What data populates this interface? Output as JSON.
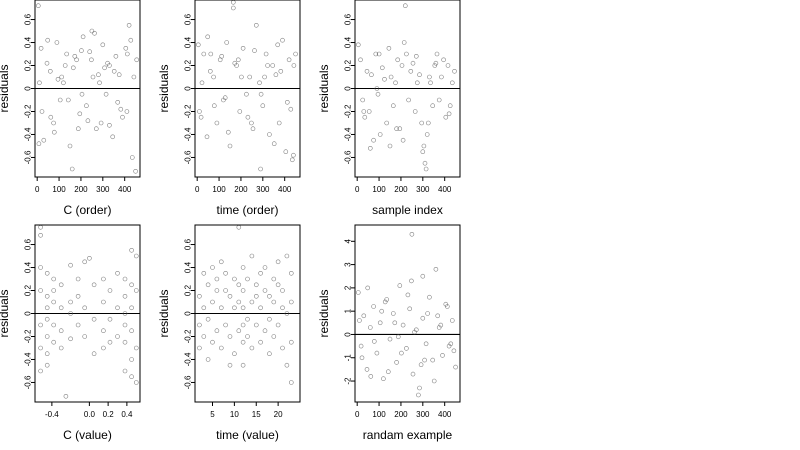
{
  "chart_data": [
    {
      "type": "scatter",
      "title": "",
      "xlabel": "C (order)",
      "ylabel": "residuals",
      "xlim": [
        -10,
        470
      ],
      "ylim": [
        -0.77,
        0.77
      ],
      "xticks": [
        0,
        100,
        200,
        300,
        400
      ],
      "yticks": [
        -0.6,
        -0.4,
        -0.2,
        0.0,
        0.2,
        0.4,
        0.6
      ],
      "reference_line_y": 0,
      "grid": false,
      "series": [
        {
          "x": [
            5,
            18,
            30,
            45,
            60,
            75,
            90,
            105,
            120,
            135,
            150,
            165,
            180,
            195,
            210,
            225,
            240,
            255,
            270,
            285,
            300,
            315,
            330,
            345,
            360,
            375,
            390,
            405,
            420,
            435,
            450,
            22,
            48,
            78,
            112,
            142,
            172,
            202,
            232,
            262,
            292,
            322,
            352,
            382,
            412,
            442,
            10,
            62,
            128,
            188,
            248,
            308,
            368,
            428,
            8,
            95,
            205,
            280,
            330,
            410,
            455,
            160,
            250
          ],
          "y": [
            0.72,
            0.35,
            -0.45,
            0.22,
            0.15,
            -0.3,
            0.4,
            -0.1,
            0.05,
            0.3,
            -0.5,
            0.18,
            0.25,
            -0.22,
            0.45,
            -0.15,
            0.32,
            0.1,
            -0.35,
            0.05,
            0.38,
            -0.05,
            0.2,
            -0.42,
            0.28,
            0.12,
            -0.25,
            0.35,
            0.55,
            -0.6,
            -0.72,
            -0.2,
            0.42,
            -0.38,
            0.1,
            -0.1,
            0.28,
            0.33,
            -0.28,
            0.48,
            -0.3,
            0.22,
            0.15,
            -0.18,
            0.3,
            0.1,
            0.05,
            -0.25,
            0.2,
            -0.35,
            0.25,
            0.18,
            -0.12,
            0.42,
            -0.48,
            0.08,
            -0.05,
            0.12,
            -0.32,
            -0.2,
            0.25,
            -0.7,
            0.5
          ]
        }
      ]
    },
    {
      "type": "scatter",
      "title": "",
      "xlabel": "time (order)",
      "ylabel": "residuals",
      "xlim": [
        -10,
        470
      ],
      "ylim": [
        -0.77,
        0.77
      ],
      "xticks": [
        0,
        100,
        200,
        300,
        400
      ],
      "yticks": [
        -0.6,
        -0.4,
        -0.2,
        0.0,
        0.2,
        0.4,
        0.6
      ],
      "reference_line_y": 0,
      "grid": false,
      "series": [
        {
          "x": [
            5,
            18,
            30,
            45,
            60,
            75,
            90,
            105,
            120,
            135,
            150,
            165,
            180,
            195,
            210,
            225,
            240,
            255,
            270,
            285,
            300,
            315,
            330,
            345,
            360,
            375,
            390,
            405,
            420,
            435,
            450,
            22,
            48,
            78,
            112,
            142,
            172,
            202,
            232,
            262,
            292,
            322,
            352,
            382,
            412,
            442,
            10,
            62,
            128,
            188,
            248,
            308,
            368,
            428,
            165,
            290,
            440
          ],
          "y": [
            0.38,
            -0.25,
            0.3,
            -0.42,
            0.15,
            0.1,
            -0.3,
            0.25,
            -0.1,
            0.4,
            -0.5,
            0.7,
            0.2,
            -0.2,
            0.35,
            -0.05,
            0.1,
            -0.35,
            0.55,
            0.05,
            -0.15,
            0.3,
            -0.4,
            0.2,
            0.12,
            -0.3,
            0.42,
            -0.55,
            0.25,
            -0.62,
            0.3,
            0.05,
            0.45,
            -0.15,
            0.28,
            -0.38,
            0.22,
            0.1,
            -0.25,
            0.33,
            -0.05,
            0.2,
            -0.48,
            0.15,
            -0.12,
            0.2,
            -0.2,
            0.3,
            -0.08,
            0.25,
            -0.3,
            0.1,
            0.38,
            -0.18,
            0.75,
            -0.7,
            -0.58
          ]
        }
      ]
    },
    {
      "type": "scatter",
      "title": "",
      "xlabel": "sample index",
      "ylabel": "residuals",
      "xlim": [
        -10,
        470
      ],
      "ylim": [
        -0.77,
        0.77
      ],
      "xticks": [
        0,
        100,
        200,
        300,
        400
      ],
      "yticks": [
        -0.6,
        -0.4,
        -0.2,
        0.0,
        0.2,
        0.4,
        0.6
      ],
      "reference_line_y": 0,
      "grid": false,
      "series": [
        {
          "x": [
            5,
            15,
            25,
            35,
            45,
            55,
            65,
            75,
            85,
            95,
            105,
            115,
            125,
            135,
            145,
            155,
            165,
            175,
            185,
            195,
            205,
            215,
            225,
            235,
            245,
            255,
            265,
            275,
            285,
            295,
            305,
            310,
            315,
            320,
            325,
            335,
            345,
            355,
            365,
            375,
            385,
            395,
            405,
            415,
            425,
            435,
            445,
            30,
            90,
            150,
            210,
            270,
            300,
            330,
            360,
            420,
            220,
            100,
            180,
            60
          ],
          "y": [
            0.38,
            0.25,
            -0.1,
            -0.25,
            0.15,
            -0.2,
            0.12,
            -0.45,
            0.3,
            -0.05,
            -0.4,
            0.18,
            0.08,
            -0.3,
            0.35,
            0.1,
            -0.15,
            0.05,
            0.25,
            -0.35,
            0.2,
            0.4,
            0.3,
            -0.1,
            0.15,
            0.22,
            -0.2,
            0.05,
            0.12,
            -0.3,
            -0.5,
            -0.65,
            -0.7,
            -0.4,
            -0.3,
            0.05,
            -0.15,
            0.2,
            0.3,
            -0.1,
            0.1,
            0.25,
            -0.25,
            0.2,
            -0.15,
            0.05,
            0.15,
            -0.2,
            0.0,
            -0.5,
            -0.45,
            0.28,
            -0.55,
            0.1,
            0.22,
            -0.22,
            0.72,
            0.3,
            -0.35,
            -0.52
          ]
        }
      ]
    },
    {
      "type": "scatter",
      "title": "",
      "xlabel": "C (value)",
      "ylabel": "residuals",
      "xlim": [
        -0.58,
        0.54
      ],
      "ylim": [
        -0.77,
        0.77
      ],
      "xticks": [
        -0.4,
        0.0,
        0.2,
        0.4
      ],
      "xtick_labels": [
        "-0.4",
        "0.0",
        "0.2",
        "0.4"
      ],
      "yticks": [
        -0.6,
        -0.4,
        -0.2,
        0.0,
        0.2,
        0.4,
        0.6
      ],
      "reference_line_y": 0,
      "grid": false,
      "series": [
        {
          "x": [
            -0.52,
            -0.52,
            -0.52,
            -0.52,
            -0.52,
            -0.52,
            -0.45,
            -0.45,
            -0.45,
            -0.45,
            -0.45,
            -0.45,
            -0.45,
            -0.38,
            -0.38,
            -0.38,
            -0.38,
            -0.38,
            -0.3,
            -0.3,
            -0.3,
            -0.3,
            -0.2,
            -0.2,
            -0.2,
            -0.2,
            -0.12,
            -0.12,
            -0.12,
            -0.05,
            -0.05,
            -0.05,
            0.05,
            0.05,
            0.05,
            0.15,
            0.15,
            0.15,
            0.15,
            0.22,
            0.22,
            0.22,
            0.3,
            0.3,
            0.3,
            0.38,
            0.38,
            0.38,
            0.38,
            0.38,
            0.38,
            0.45,
            0.45,
            0.45,
            0.45,
            0.45,
            0.5,
            0.5,
            0.5,
            0.5,
            -0.52,
            0.45,
            -0.25,
            0.0
          ],
          "y": [
            0.75,
            0.4,
            0.2,
            -0.1,
            -0.3,
            -0.5,
            0.35,
            0.15,
            0.05,
            -0.05,
            -0.2,
            -0.35,
            -0.45,
            0.3,
            0.1,
            -0.1,
            -0.25,
            0.2,
            0.25,
            -0.15,
            0.05,
            -0.3,
            0.42,
            0.1,
            -0.22,
            0.0,
            0.3,
            -0.1,
            0.15,
            0.45,
            -0.2,
            0.05,
            0.25,
            -0.05,
            -0.35,
            0.3,
            0.1,
            -0.15,
            -0.3,
            0.2,
            -0.05,
            -0.25,
            0.35,
            0.05,
            -0.2,
            0.3,
            0.15,
            0.0,
            -0.1,
            -0.25,
            -0.5,
            0.55,
            0.25,
            0.05,
            -0.15,
            -0.4,
            0.5,
            0.2,
            -0.3,
            -0.6,
            0.68,
            -0.55,
            -0.72,
            0.48
          ]
        }
      ]
    },
    {
      "type": "scatter",
      "title": "",
      "xlabel": "time (value)",
      "ylabel": "residuals",
      "xlim": [
        1,
        25
      ],
      "ylim": [
        -0.77,
        0.77
      ],
      "xticks": [
        5,
        10,
        15,
        20
      ],
      "yticks": [
        -0.6,
        -0.4,
        -0.2,
        0.0,
        0.2,
        0.4,
        0.6
      ],
      "reference_line_y": 0,
      "grid": false,
      "series": [
        {
          "x": [
            2,
            2,
            2,
            3,
            3,
            3,
            4,
            4,
            4,
            5,
            5,
            5,
            6,
            6,
            6,
            7,
            7,
            7,
            8,
            8,
            8,
            9,
            9,
            9,
            10,
            10,
            10,
            11,
            11,
            11,
            12,
            12,
            12,
            12,
            12,
            12,
            13,
            13,
            13,
            14,
            14,
            14,
            15,
            15,
            15,
            16,
            16,
            16,
            17,
            17,
            17,
            18,
            18,
            18,
            19,
            19,
            19,
            20,
            20,
            20,
            21,
            21,
            21,
            22,
            22,
            22,
            23,
            23,
            23,
            23,
            11
          ],
          "y": [
            0.15,
            -0.1,
            -0.3,
            0.35,
            0.05,
            -0.2,
            0.25,
            -0.05,
            -0.4,
            0.4,
            0.1,
            -0.25,
            0.3,
            -0.15,
            0.2,
            0.45,
            0.05,
            -0.3,
            0.2,
            -0.1,
            0.35,
            0.15,
            -0.2,
            -0.45,
            0.3,
            0.05,
            -0.35,
            0.25,
            -0.15,
            0.1,
            0.4,
            0.2,
            0.05,
            -0.1,
            -0.25,
            -0.45,
            0.3,
            -0.05,
            -0.2,
            0.5,
            0.1,
            -0.3,
            0.25,
            -0.1,
            0.15,
            0.35,
            0.05,
            -0.25,
            0.2,
            -0.15,
            0.4,
            0.15,
            -0.05,
            -0.35,
            0.3,
            0.1,
            -0.2,
            0.45,
            -0.1,
            0.25,
            0.2,
            -0.3,
            0.05,
            0.5,
            0.0,
            -0.45,
            0.35,
            0.1,
            -0.25,
            -0.6,
            0.75
          ]
        }
      ]
    },
    {
      "type": "scatter",
      "title": "",
      "xlabel": "randam example",
      "ylabel": "residuals",
      "xlim": [
        -10,
        470
      ],
      "ylim": [
        -2.9,
        4.7
      ],
      "xticks": [
        0,
        100,
        200,
        300,
        400
      ],
      "yticks": [
        -2,
        -1,
        0,
        1,
        2,
        3,
        4
      ],
      "reference_line_y": 0,
      "grid": false,
      "series": [
        {
          "x": [
            5,
            18,
            30,
            45,
            60,
            75,
            90,
            105,
            120,
            135,
            150,
            165,
            180,
            195,
            210,
            225,
            240,
            255,
            270,
            285,
            300,
            315,
            330,
            345,
            360,
            375,
            390,
            405,
            420,
            435,
            450,
            22,
            48,
            78,
            112,
            142,
            172,
            202,
            232,
            262,
            292,
            322,
            352,
            382,
            412,
            442,
            10,
            62,
            128,
            188,
            248,
            308,
            368,
            428,
            280,
            250,
            300
          ],
          "y": [
            1.8,
            -0.5,
            0.8,
            -1.5,
            0.3,
            1.2,
            -0.8,
            0.5,
            -1.9,
            1.5,
            -0.2,
            0.9,
            -1.2,
            2.1,
            0.4,
            -0.6,
            1.1,
            -1.7,
            0.2,
            -2.3,
            0.7,
            -0.4,
            1.6,
            -1.1,
            2.8,
            0.3,
            -0.9,
            1.3,
            -0.5,
            0.6,
            -1.4,
            -1.0,
            2.0,
            -0.3,
            1.0,
            -1.6,
            0.5,
            -0.8,
            1.7,
            0.1,
            -1.3,
            0.9,
            -2.0,
            0.4,
            1.2,
            -0.7,
            0.6,
            -1.8,
            1.4,
            -0.1,
            2.3,
            -1.1,
            0.8,
            -0.4,
            -2.6,
            4.3,
            2.5
          ]
        }
      ]
    }
  ]
}
